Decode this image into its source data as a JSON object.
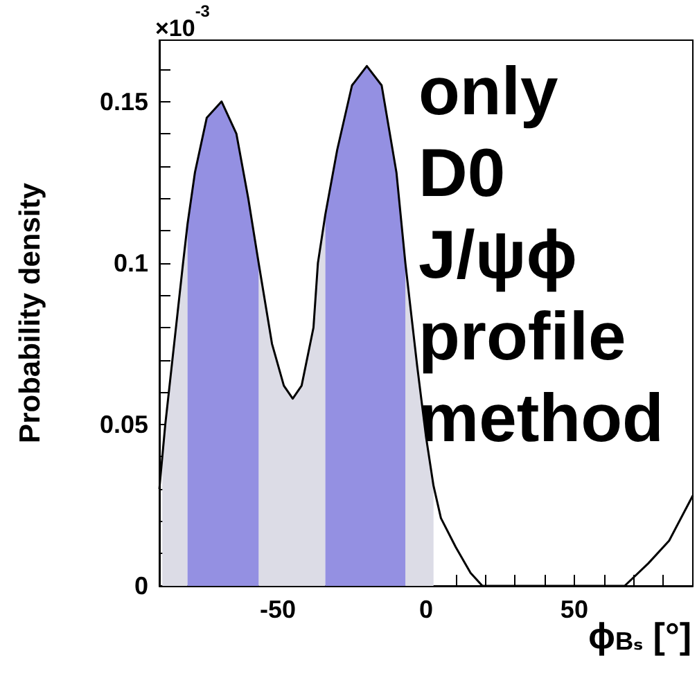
{
  "chart_data": {
    "type": "line",
    "xlabel": "ϕ$_{Bₛ}$ [°]",
    "ylabel": "Probability density",
    "annotations": [
      "×10$^{-3}$",
      "only",
      "D0",
      "J/ψϕ",
      "profile",
      "method"
    ],
    "xlim": [
      -90,
      90
    ],
    "xticks": [
      {
        "value": -90,
        "label": null
      },
      {
        "value": -80,
        "label": null
      },
      {
        "value": -70,
        "label": null
      },
      {
        "value": -60,
        "label": null
      },
      -50,
      {
        "value": -40,
        "label": null
      },
      {
        "value": -30,
        "label": null
      },
      {
        "value": -20,
        "label": null
      },
      {
        "value": -10,
        "label": null
      },
      0,
      {
        "value": 10,
        "label": null
      },
      {
        "value": 20,
        "label": null
      },
      {
        "value": 30,
        "label": null
      },
      {
        "value": 40,
        "label": null
      },
      50,
      {
        "value": 60,
        "label": null
      },
      {
        "value": 70,
        "label": null
      },
      {
        "value": 80,
        "label": null
      }
    ],
    "ylim": [
      0,
      0.169
    ],
    "yticks": [
      0,
      {
        "value": 0.01,
        "label": null
      },
      {
        "value": 0.02,
        "label": null
      },
      {
        "value": 0.03,
        "label": null
      },
      {
        "value": 0.04,
        "label": null
      },
      0.05,
      {
        "value": 0.06,
        "label": null
      },
      {
        "value": 0.07,
        "label": null
      },
      {
        "value": 0.08,
        "label": null
      },
      {
        "value": 0.09,
        "label": null
      },
      0.1,
      {
        "value": 0.11,
        "label": null
      },
      {
        "value": 0.12,
        "label": null
      },
      {
        "value": 0.13,
        "label": null
      },
      {
        "value": 0.14,
        "label": null
      },
      0.15,
      {
        "value": 0.16,
        "label": null
      }
    ],
    "marker": "none",
    "line_style": "solid",
    "series": [
      {
        "type": "area",
        "color": "#dcdce6",
        "x": [
          -89,
          -88,
          -85,
          -82,
          -80.5,
          -69,
          -56.5,
          -52,
          -48,
          -45,
          -42,
          -38,
          -36.5,
          -34,
          -20,
          -7,
          -3,
          0,
          2.5
        ],
        "values": [
          0.04,
          0.05,
          0.075,
          0.1,
          0.112,
          null,
          0.1,
          0.075,
          0.062,
          0.058,
          0.062,
          0.08,
          0.1,
          0.115,
          null,
          0.1,
          0.068,
          0.046,
          0.031
        ]
      },
      {
        "type": "area",
        "color": "#9490e2",
        "x": [
          -80.5,
          -78,
          -74,
          -69,
          -64,
          -60,
          -56.5,
          -45,
          -34,
          -30,
          -25,
          -20,
          -15,
          -10,
          -7
        ],
        "values": [
          0.112,
          0.128,
          0.145,
          0.15,
          0.14,
          0.12,
          0.1,
          null,
          0.115,
          0.135,
          0.155,
          0.161,
          0.155,
          0.128,
          0.1
        ]
      },
      {
        "type": "line",
        "color": "#000000",
        "x": [
          -90,
          -88,
          -85,
          -82,
          -80.5,
          -78,
          -74,
          -69,
          -64,
          -60,
          -56.5,
          -52,
          -48,
          -45,
          -42,
          -38,
          -36.5,
          -34,
          -30,
          -25,
          -20,
          -15,
          -10,
          -7,
          -3,
          0,
          2.5,
          5,
          10,
          15,
          19,
          30,
          50,
          67,
          75,
          82,
          90
        ],
        "values": [
          0.03,
          0.05,
          0.075,
          0.1,
          0.112,
          0.128,
          0.145,
          0.15,
          0.14,
          0.12,
          0.1,
          0.075,
          0.062,
          0.058,
          0.062,
          0.08,
          0.1,
          0.115,
          0.135,
          0.155,
          0.161,
          0.155,
          0.128,
          0.1,
          0.068,
          0.046,
          0.031,
          0.021,
          0.012,
          0.004,
          0,
          0,
          0,
          0,
          0.007,
          0.014,
          0.028
        ]
      }
    ]
  }
}
